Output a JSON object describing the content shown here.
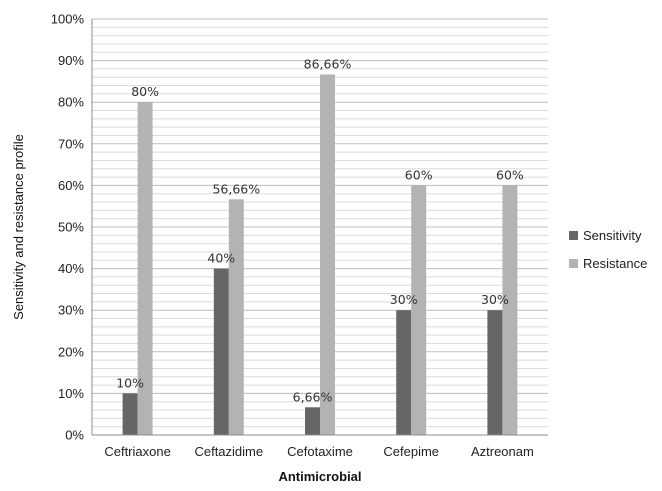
{
  "chart_data": {
    "type": "bar",
    "title": "",
    "xlabel": "Antimicrobial",
    "ylabel": "Sensitivity and resistance profile",
    "categories": [
      "Ceftriaxone",
      "Ceftazidime",
      "Cefotaxime",
      "Cefepime",
      "Aztreonam"
    ],
    "series": [
      {
        "name": "Sensitivity",
        "color": "#666666",
        "values": [
          10,
          40,
          6.66,
          30,
          30
        ],
        "labels": [
          "10%",
          "40%",
          "6,66%",
          "30%",
          "30%"
        ]
      },
      {
        "name": "Resistance",
        "color": "#b3b3b3",
        "values": [
          80,
          56.66,
          86.66,
          60,
          60
        ],
        "labels": [
          "80%",
          "56,66%",
          "86,66%",
          "60%",
          "60%"
        ]
      }
    ],
    "ylim": [
      0,
      100
    ],
    "y_ticks": [
      0,
      10,
      20,
      30,
      40,
      50,
      60,
      70,
      80,
      90,
      100
    ],
    "y_tick_labels": [
      "0%",
      "10%",
      "20%",
      "30%",
      "40%",
      "50%",
      "60%",
      "70%",
      "80%",
      "90%",
      "100%"
    ],
    "y_minor_step": 2,
    "grid": true,
    "legend_position": "right"
  }
}
